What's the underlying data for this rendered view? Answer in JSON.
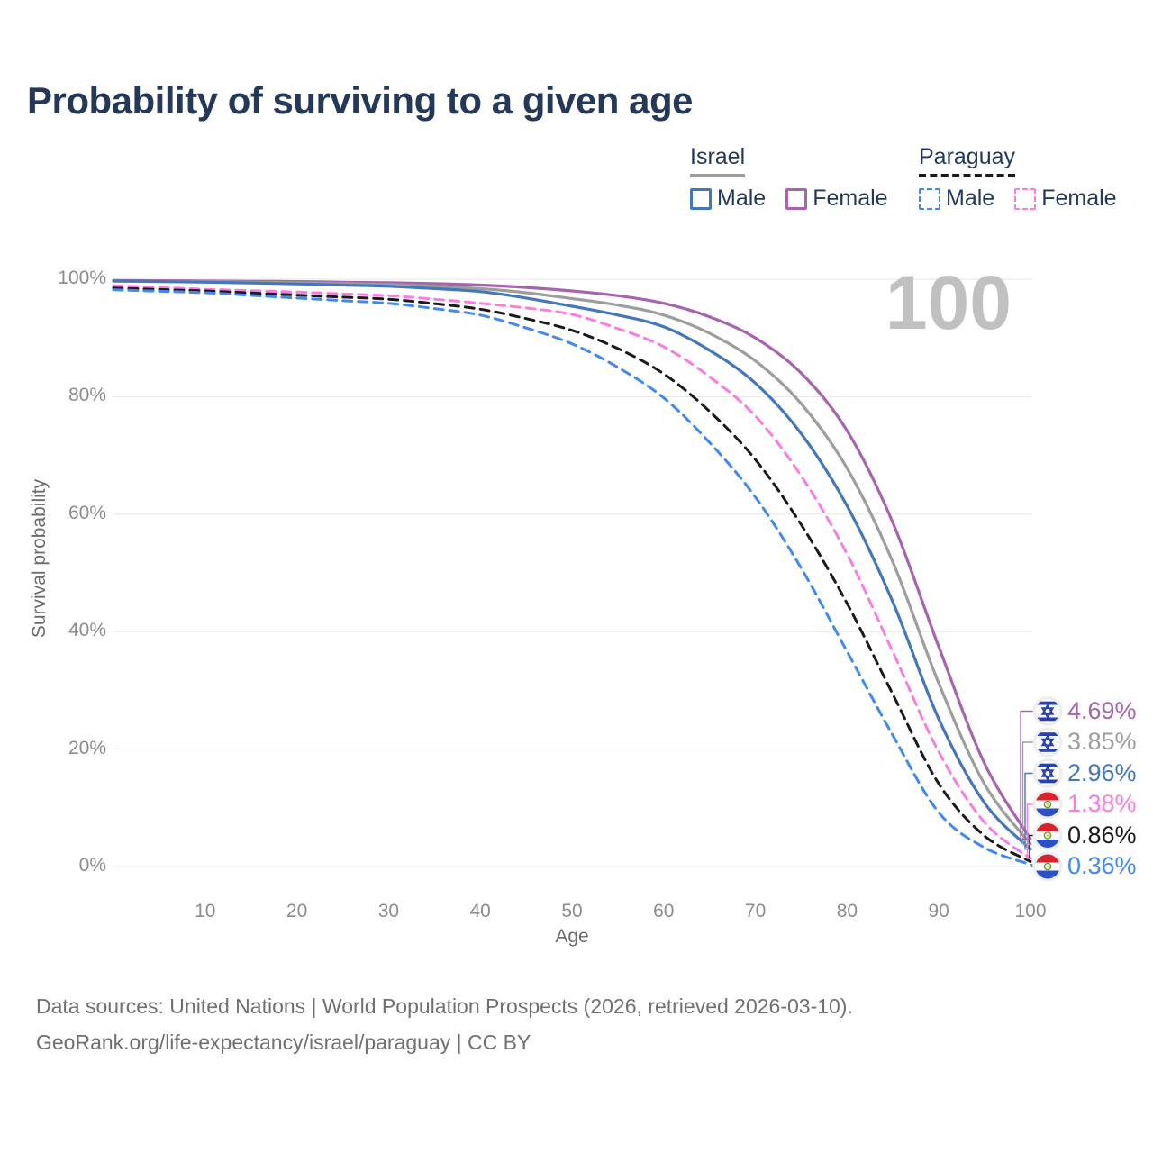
{
  "title": "Probability of surviving to a given age",
  "watermark": "100",
  "legend": {
    "groups": [
      {
        "country": "Israel",
        "items": [
          {
            "label": "Male"
          },
          {
            "label": "Female"
          }
        ]
      },
      {
        "country": "Paraguay",
        "items": [
          {
            "label": "Male"
          },
          {
            "label": "Female"
          }
        ]
      }
    ]
  },
  "chart_data": {
    "type": "line",
    "title": "Probability of surviving to a given age",
    "xlabel": "Age",
    "ylabel": "Survival probability",
    "xlim": [
      0,
      100
    ],
    "ylim": [
      0,
      100
    ],
    "x_ticks": [
      10,
      20,
      30,
      40,
      50,
      60,
      70,
      80,
      90,
      100
    ],
    "y_ticks": [
      0,
      20,
      40,
      60,
      80,
      100
    ],
    "y_tick_suffix": "%",
    "grid": "horizontal",
    "legend_position": "top-right",
    "series": [
      {
        "name": "Israel Female",
        "country": "Israel",
        "sex": "Female",
        "color": "#a763ae",
        "dash": false,
        "flag": "israel",
        "end_label": "4.69%",
        "end_value": 4.69,
        "points": [
          [
            0,
            99.8
          ],
          [
            5,
            99.75
          ],
          [
            10,
            99.7
          ],
          [
            15,
            99.65
          ],
          [
            20,
            99.6
          ],
          [
            25,
            99.5
          ],
          [
            30,
            99.4
          ],
          [
            35,
            99.25
          ],
          [
            40,
            99.0
          ],
          [
            45,
            98.6
          ],
          [
            50,
            98.0
          ],
          [
            55,
            97.2
          ],
          [
            60,
            95.9
          ],
          [
            65,
            93.6
          ],
          [
            70,
            90.0
          ],
          [
            75,
            84.0
          ],
          [
            80,
            74.2
          ],
          [
            85,
            58.5
          ],
          [
            90,
            37.4
          ],
          [
            95,
            17.5
          ],
          [
            100,
            4.69
          ]
        ]
      },
      {
        "name": "Israel",
        "country": "Israel",
        "sex": "Both",
        "color": "#9d9d9d",
        "dash": false,
        "flag": "israel",
        "end_label": "3.85%",
        "end_value": 3.85,
        "points": [
          [
            0,
            99.7
          ],
          [
            5,
            99.65
          ],
          [
            10,
            99.6
          ],
          [
            15,
            99.5
          ],
          [
            20,
            99.4
          ],
          [
            25,
            99.25
          ],
          [
            30,
            99.1
          ],
          [
            35,
            98.8
          ],
          [
            40,
            98.4
          ],
          [
            45,
            97.7
          ],
          [
            50,
            96.7
          ],
          [
            55,
            95.6
          ],
          [
            60,
            93.9
          ],
          [
            65,
            90.8
          ],
          [
            70,
            86.1
          ],
          [
            75,
            78.8
          ],
          [
            80,
            67.8
          ],
          [
            85,
            51.8
          ],
          [
            90,
            31.2
          ],
          [
            95,
            14.0
          ],
          [
            100,
            3.85
          ]
        ]
      },
      {
        "name": "Israel Male",
        "country": "Israel",
        "sex": "Male",
        "color": "#4377bc",
        "dash": false,
        "flag": "israel",
        "end_label": "2.96%",
        "end_value": 2.96,
        "points": [
          [
            0,
            99.7
          ],
          [
            5,
            99.6
          ],
          [
            10,
            99.5
          ],
          [
            15,
            99.35
          ],
          [
            20,
            99.2
          ],
          [
            25,
            99.0
          ],
          [
            30,
            98.8
          ],
          [
            35,
            98.4
          ],
          [
            40,
            97.9
          ],
          [
            45,
            96.8
          ],
          [
            50,
            95.4
          ],
          [
            55,
            93.9
          ],
          [
            60,
            91.9
          ],
          [
            65,
            87.9
          ],
          [
            70,
            82.3
          ],
          [
            75,
            73.7
          ],
          [
            80,
            61.4
          ],
          [
            85,
            45.0
          ],
          [
            90,
            25.1
          ],
          [
            95,
            10.8
          ],
          [
            100,
            2.96
          ]
        ]
      },
      {
        "name": "Paraguay Female",
        "country": "Paraguay",
        "sex": "Female",
        "color": "#f97ce0",
        "dash": true,
        "flag": "paraguay",
        "end_label": "1.38%",
        "end_value": 1.38,
        "points": [
          [
            0,
            98.9
          ],
          [
            5,
            98.6
          ],
          [
            10,
            98.3
          ],
          [
            15,
            98.05
          ],
          [
            20,
            97.8
          ],
          [
            25,
            97.5
          ],
          [
            30,
            97.2
          ],
          [
            35,
            96.6
          ],
          [
            40,
            95.9
          ],
          [
            45,
            95.1
          ],
          [
            50,
            94.0
          ],
          [
            55,
            91.6
          ],
          [
            60,
            88.5
          ],
          [
            65,
            83.4
          ],
          [
            70,
            76.7
          ],
          [
            75,
            66.5
          ],
          [
            80,
            53.2
          ],
          [
            85,
            36.5
          ],
          [
            90,
            19.5
          ],
          [
            95,
            7.5
          ],
          [
            100,
            1.38
          ]
        ]
      },
      {
        "name": "Paraguay",
        "country": "Paraguay",
        "sex": "Both",
        "color": "#1a1a1a",
        "dash": true,
        "flag": "paraguay",
        "end_label": "0.86%",
        "end_value": 0.86,
        "points": [
          [
            0,
            98.5
          ],
          [
            5,
            98.25
          ],
          [
            10,
            98.0
          ],
          [
            15,
            97.65
          ],
          [
            20,
            97.3
          ],
          [
            25,
            96.95
          ],
          [
            30,
            96.6
          ],
          [
            35,
            95.85
          ],
          [
            40,
            94.9
          ],
          [
            45,
            93.3
          ],
          [
            50,
            91.3
          ],
          [
            55,
            88.2
          ],
          [
            60,
            83.9
          ],
          [
            65,
            77.5
          ],
          [
            70,
            69.3
          ],
          [
            75,
            58.2
          ],
          [
            80,
            44.8
          ],
          [
            85,
            29.3
          ],
          [
            90,
            14.1
          ],
          [
            95,
            5.2
          ],
          [
            100,
            0.86
          ]
        ]
      },
      {
        "name": "Paraguay Male",
        "country": "Paraguay",
        "sex": "Male",
        "color": "#4188f0",
        "dash": true,
        "flag": "paraguay",
        "end_label": "0.36%",
        "end_value": 0.36,
        "points": [
          [
            0,
            98.2
          ],
          [
            5,
            97.95
          ],
          [
            10,
            97.7
          ],
          [
            15,
            97.25
          ],
          [
            20,
            96.8
          ],
          [
            25,
            96.35
          ],
          [
            30,
            95.9
          ],
          [
            35,
            95.0
          ],
          [
            40,
            93.9
          ],
          [
            45,
            91.7
          ],
          [
            50,
            89.0
          ],
          [
            55,
            85.0
          ],
          [
            60,
            79.8
          ],
          [
            65,
            72.2
          ],
          [
            70,
            62.9
          ],
          [
            75,
            50.8
          ],
          [
            80,
            36.6
          ],
          [
            85,
            22.3
          ],
          [
            90,
            9.2
          ],
          [
            95,
            3.2
          ],
          [
            100,
            0.36
          ]
        ]
      }
    ]
  },
  "footer": {
    "line1": "Data sources: United Nations | World Population Prospects (2026, retrieved 2026-03-10).",
    "line2": "GeoRank.org/life-expectancy/israel/paraguay | CC BY"
  }
}
